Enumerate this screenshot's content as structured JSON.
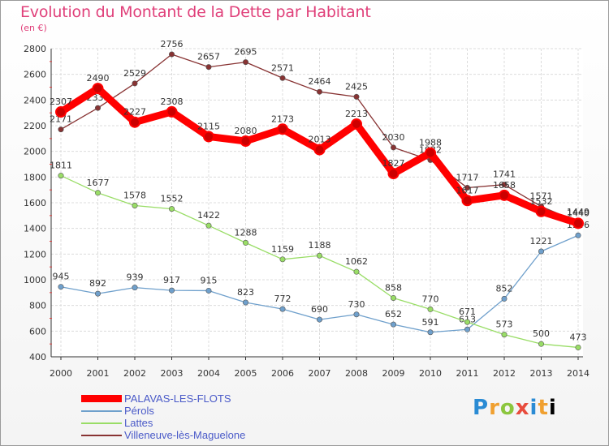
{
  "chart_data": {
    "type": "line",
    "title": "Evolution du Montant de la Dette par Habitant",
    "subtitle": "(en €)",
    "x": [
      "2000",
      "2001",
      "2002",
      "2003",
      "2004",
      "2005",
      "2006",
      "2007",
      "2008",
      "2009",
      "2010",
      "2011",
      "2012",
      "2013",
      "2014"
    ],
    "ylim": [
      400,
      2800
    ],
    "yticks": [
      400,
      600,
      800,
      1000,
      1200,
      1400,
      1600,
      1800,
      2000,
      2200,
      2400,
      2600,
      2800
    ],
    "grid": true,
    "legend_position": "bottom-left",
    "series": [
      {
        "name": "PALAVAS-LES-FLOTS",
        "color": "#ff0000",
        "thick": true,
        "values": [
          2307,
          2490,
          2227,
          2308,
          2115,
          2080,
          2173,
          2013,
          2213,
          1827,
          1988,
          1617,
          1658,
          1532,
          1440
        ]
      },
      {
        "name": "Pérols",
        "color": "#6fa0cc",
        "thick": false,
        "values": [
          945,
          892,
          939,
          917,
          915,
          823,
          772,
          690,
          730,
          652,
          591,
          613,
          852,
          1221,
          1346
        ]
      },
      {
        "name": "Lattes",
        "color": "#99dd66",
        "thick": false,
        "values": [
          1811,
          1677,
          1578,
          1552,
          1422,
          1288,
          1159,
          1188,
          1062,
          858,
          770,
          671,
          573,
          500,
          473
        ]
      },
      {
        "name": "Villeneuve-lès-Maguelone",
        "color": "#883333",
        "thick": false,
        "values": [
          2171,
          2338,
          2529,
          2756,
          2657,
          2695,
          2571,
          2464,
          2425,
          2030,
          1932,
          1717,
          1741,
          1571,
          1449
        ]
      }
    ]
  },
  "logo": {
    "letters": [
      "P",
      "r",
      "o",
      "x",
      "i",
      "t",
      "i"
    ],
    "text": "Proxiti"
  }
}
